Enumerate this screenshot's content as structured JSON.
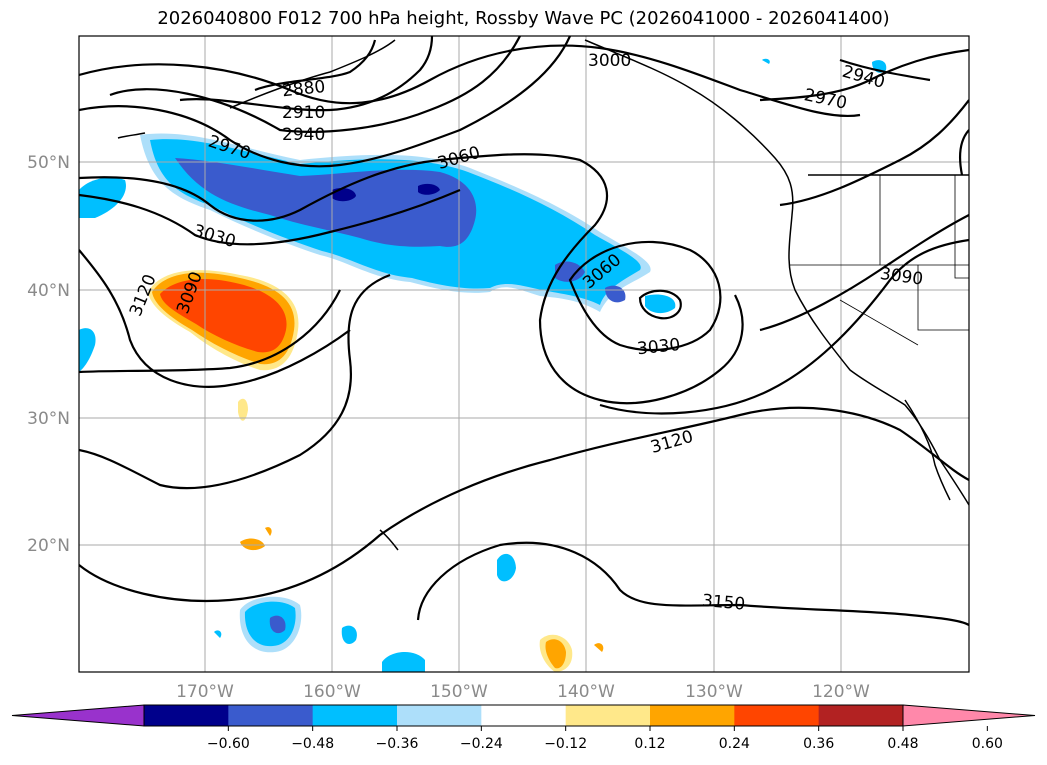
{
  "title": "2026040800 F012 700 hPa height, Rossby Wave PC (2026041000 - 2026041400)",
  "map": {
    "lat_labels": [
      "50°N",
      "40°N",
      "30°N",
      "20°N"
    ],
    "lon_labels": [
      "170°W",
      "160°W",
      "150°W",
      "140°W",
      "130°W",
      "120°W"
    ],
    "contour_labels": [
      "2880",
      "2910",
      "2940",
      "2970",
      "3000",
      "2940",
      "2970",
      "3060",
      "3030",
      "3120",
      "3090",
      "3060",
      "3030",
      "3090",
      "3120",
      "3150"
    ]
  },
  "colorbar": {
    "colors": [
      "#9932CC",
      "#00008B",
      "#3A5BCD",
      "#00BFFF",
      "#ADDFFA",
      "#FFFFFF",
      "#FFE88A",
      "#FFA500",
      "#FF4500",
      "#B22222",
      "#FF88AA"
    ],
    "tick_labels": [
      "−0.60",
      "−0.48",
      "−0.36",
      "−0.24",
      "−0.12",
      "0.12",
      "0.24",
      "0.36",
      "0.48",
      "0.60"
    ]
  }
}
